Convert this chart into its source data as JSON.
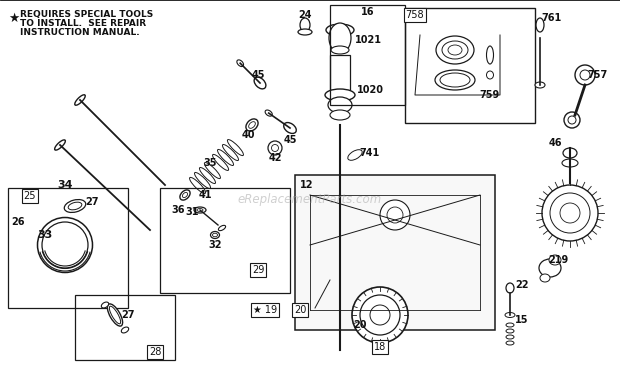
{
  "bg_color": "#ffffff",
  "fig_width": 6.2,
  "fig_height": 3.68,
  "dpi": 100,
  "watermark": "eReplacementParts.com",
  "star_note_line1": "REQUIRES SPECIAL TOOLS",
  "star_note_line2": "TO INSTALL.  SEE REPAIR",
  "star_note_line3": "INSTRUCTION MANUAL.",
  "line_color": "#1a1a1a",
  "text_color": "#111111",
  "label_fontsize": 7.0,
  "note_fontsize": 6.5
}
